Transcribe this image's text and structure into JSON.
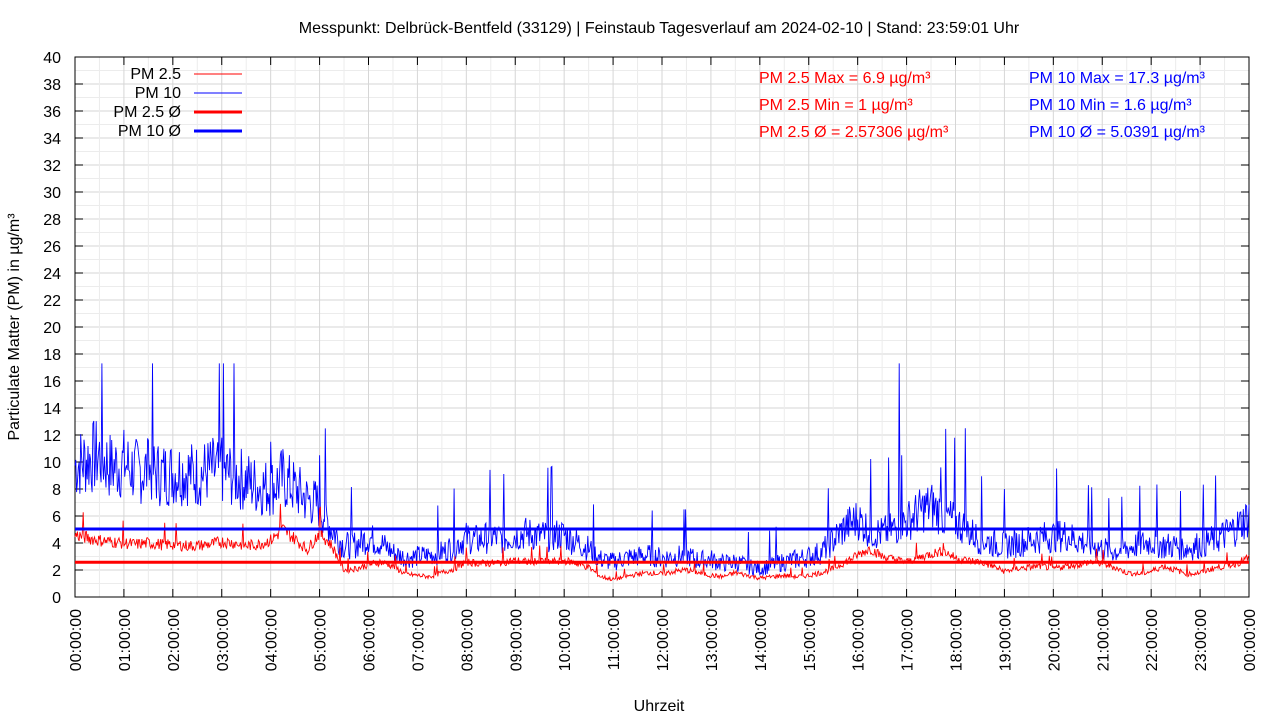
{
  "chart_data": {
    "type": "line",
    "title": "Messpunkt: Delbrück-Bentfeld (33129) | Feinstaub Tagesverlauf am 2024-02-10 | Stand: 23:59:01 Uhr",
    "xlabel": "Uhrzeit",
    "ylabel": "Particulate Matter (PM) in µg/m³",
    "ylim": [
      0,
      40
    ],
    "xlim": [
      "00:00:00",
      "24:00:00"
    ],
    "grid": true,
    "legend_position": "top-left",
    "y_ticks": [
      "0",
      "2",
      "4",
      "6",
      "8",
      "10",
      "12",
      "14",
      "16",
      "18",
      "20",
      "22",
      "24",
      "26",
      "28",
      "30",
      "32",
      "34",
      "36",
      "38",
      "40"
    ],
    "x_ticks": [
      "00:00:00",
      "01:00:00",
      "02:00:00",
      "03:00:00",
      "04:00:00",
      "05:00:00",
      "06:00:00",
      "07:00:00",
      "08:00:00",
      "09:00:00",
      "10:00:00",
      "11:00:00",
      "12:00:00",
      "13:00:00",
      "14:00:00",
      "15:00:00",
      "16:00:00",
      "17:00:00",
      "18:00:00",
      "19:00:00",
      "20:00:00",
      "21:00:00",
      "22:00:00",
      "23:00:00",
      "00:00:00"
    ],
    "series": [
      {
        "name": "PM 2.5",
        "color": "#ff0000",
        "x_hours": [
          0,
          0.25,
          0.5,
          0.75,
          1,
          1.25,
          1.5,
          1.75,
          2,
          2.25,
          2.5,
          2.75,
          3,
          3.25,
          3.5,
          3.75,
          4,
          4.25,
          4.5,
          4.75,
          5,
          5.25,
          5.5,
          5.75,
          6,
          6.25,
          6.5,
          6.75,
          7,
          7.25,
          7.5,
          7.75,
          8,
          8.25,
          8.5,
          8.75,
          9,
          9.25,
          9.5,
          9.75,
          10,
          10.25,
          10.5,
          10.75,
          11,
          11.25,
          11.5,
          11.75,
          12,
          12.25,
          12.5,
          12.75,
          13,
          13.25,
          13.5,
          13.75,
          14,
          14.25,
          14.5,
          14.75,
          15,
          15.25,
          15.5,
          15.75,
          16,
          16.25,
          16.5,
          16.75,
          17,
          17.25,
          17.5,
          17.75,
          18,
          18.25,
          18.5,
          18.75,
          19,
          19.25,
          19.5,
          19.75,
          20,
          20.25,
          20.5,
          20.75,
          21,
          21.25,
          21.5,
          21.75,
          22,
          22.25,
          22.5,
          22.75,
          23,
          23.25,
          23.5,
          23.75,
          24
        ],
        "values": [
          4.6,
          4.4,
          4.2,
          4.1,
          4.0,
          3.9,
          4.0,
          3.9,
          3.9,
          3.8,
          3.8,
          3.9,
          4.1,
          4.0,
          3.8,
          3.9,
          4.2,
          5.0,
          4.3,
          3.5,
          4.8,
          3.8,
          2.0,
          2.1,
          2.4,
          2.6,
          2.3,
          1.7,
          1.6,
          1.5,
          1.8,
          2.1,
          2.6,
          2.5,
          2.5,
          2.6,
          2.7,
          2.6,
          2.7,
          2.6,
          2.7,
          2.5,
          2.2,
          1.5,
          1.3,
          1.5,
          1.7,
          1.8,
          1.7,
          1.9,
          2.0,
          1.8,
          1.6,
          1.5,
          1.8,
          1.6,
          1.4,
          1.5,
          1.6,
          1.5,
          1.6,
          1.8,
          2.1,
          2.6,
          3.1,
          3.6,
          3.0,
          2.8,
          2.6,
          2.9,
          3.2,
          3.4,
          2.9,
          2.7,
          2.6,
          2.3,
          1.9,
          2.1,
          2.2,
          2.3,
          2.1,
          2.3,
          2.4,
          2.6,
          2.5,
          2.2,
          1.8,
          1.7,
          1.9,
          2.3,
          2.0,
          1.7,
          1.8,
          2.1,
          2.3,
          2.5,
          2.9
        ],
        "peaks": [
          {
            "x_hour": 4.2,
            "value": 6.9
          },
          {
            "x_hour": 5.0,
            "value": 6.5
          },
          {
            "x_hour": 17.75,
            "value": 4.0
          }
        ],
        "max": 6.9,
        "min": 1.0
      },
      {
        "name": "PM 10",
        "color": "#0000ff",
        "x_hours": [
          0,
          0.25,
          0.5,
          0.75,
          1,
          1.25,
          1.5,
          1.75,
          2,
          2.25,
          2.5,
          2.75,
          3,
          3.25,
          3.5,
          3.75,
          4,
          4.25,
          4.5,
          4.75,
          5,
          5.25,
          5.5,
          5.75,
          6,
          6.25,
          6.5,
          6.75,
          7,
          7.25,
          7.5,
          7.75,
          8,
          8.25,
          8.5,
          8.75,
          9,
          9.25,
          9.5,
          9.75,
          10,
          10.25,
          10.5,
          10.75,
          11,
          11.25,
          11.5,
          11.75,
          12,
          12.25,
          12.5,
          12.75,
          13,
          13.25,
          13.5,
          13.75,
          14,
          14.25,
          14.5,
          14.75,
          15,
          15.25,
          15.5,
          15.75,
          16,
          16.25,
          16.5,
          16.75,
          17,
          17.25,
          17.5,
          17.75,
          18,
          18.25,
          18.5,
          18.75,
          19,
          19.25,
          19.5,
          19.75,
          20,
          20.25,
          20.5,
          20.75,
          21,
          21.25,
          21.5,
          21.75,
          22,
          22.25,
          22.5,
          22.75,
          23,
          23.25,
          23.5,
          23.75,
          24
        ],
        "values": [
          9.8,
          10.2,
          10.5,
          9.6,
          9.9,
          9.3,
          9.4,
          9.1,
          9.2,
          9.3,
          9.0,
          9.4,
          9.3,
          9.0,
          8.6,
          8.2,
          8.1,
          8.8,
          8.0,
          7.2,
          6.8,
          5.0,
          3.8,
          3.9,
          4.4,
          4.0,
          3.3,
          2.9,
          3.0,
          3.1,
          3.3,
          3.8,
          4.4,
          4.2,
          4.5,
          4.3,
          4.6,
          4.7,
          4.5,
          4.6,
          4.6,
          4.1,
          3.6,
          2.8,
          2.6,
          2.9,
          3.0,
          3.1,
          2.9,
          3.0,
          3.1,
          2.7,
          2.8,
          2.5,
          2.6,
          2.3,
          2.1,
          2.4,
          2.6,
          2.8,
          3.0,
          3.3,
          4.2,
          5.2,
          5.8,
          4.9,
          4.7,
          5.1,
          5.6,
          6.3,
          6.8,
          6.0,
          5.6,
          4.9,
          4.3,
          4.0,
          3.8,
          4.0,
          4.2,
          4.4,
          4.5,
          4.6,
          4.2,
          3.9,
          3.6,
          3.4,
          3.6,
          3.9,
          4.1,
          3.8,
          3.8,
          3.6,
          3.9,
          4.2,
          4.6,
          5.2,
          6.0
        ],
        "peaks": [
          {
            "x_hour": 16.85,
            "value": 17.3
          },
          {
            "x_hour": 16.9,
            "value": 10.5
          },
          {
            "x_hour": 18.2,
            "value": 12.5
          },
          {
            "x_hour": 17.7,
            "value": 9.6
          },
          {
            "x_hour": 4.0,
            "value": 11.5
          },
          {
            "x_hour": 3.0,
            "value": 11.8
          },
          {
            "x_hour": 5.0,
            "value": 10.5
          },
          {
            "x_hour": 1.5,
            "value": 11.6
          }
        ],
        "max": 17.3,
        "min": 1.6
      },
      {
        "name": "PM 2.5 Ø",
        "color": "#ff0000",
        "mean": 2.57306
      },
      {
        "name": "PM 10 Ø",
        "color": "#0000ff",
        "mean": 5.0391
      }
    ],
    "stats": {
      "pm25_max": "PM 2.5 Max = 6.9 µg/m³",
      "pm25_min": "PM 2.5 Min = 1 µg/m³",
      "pm25_avg": "PM 2.5 Ø = 2.57306 µg/m³",
      "pm10_max": "PM 10 Max = 17.3 µg/m³",
      "pm10_min": "PM 10 Min = 1.6 µg/m³",
      "pm10_avg": "PM 10 Ø = 5.0391 µg/m³"
    }
  }
}
